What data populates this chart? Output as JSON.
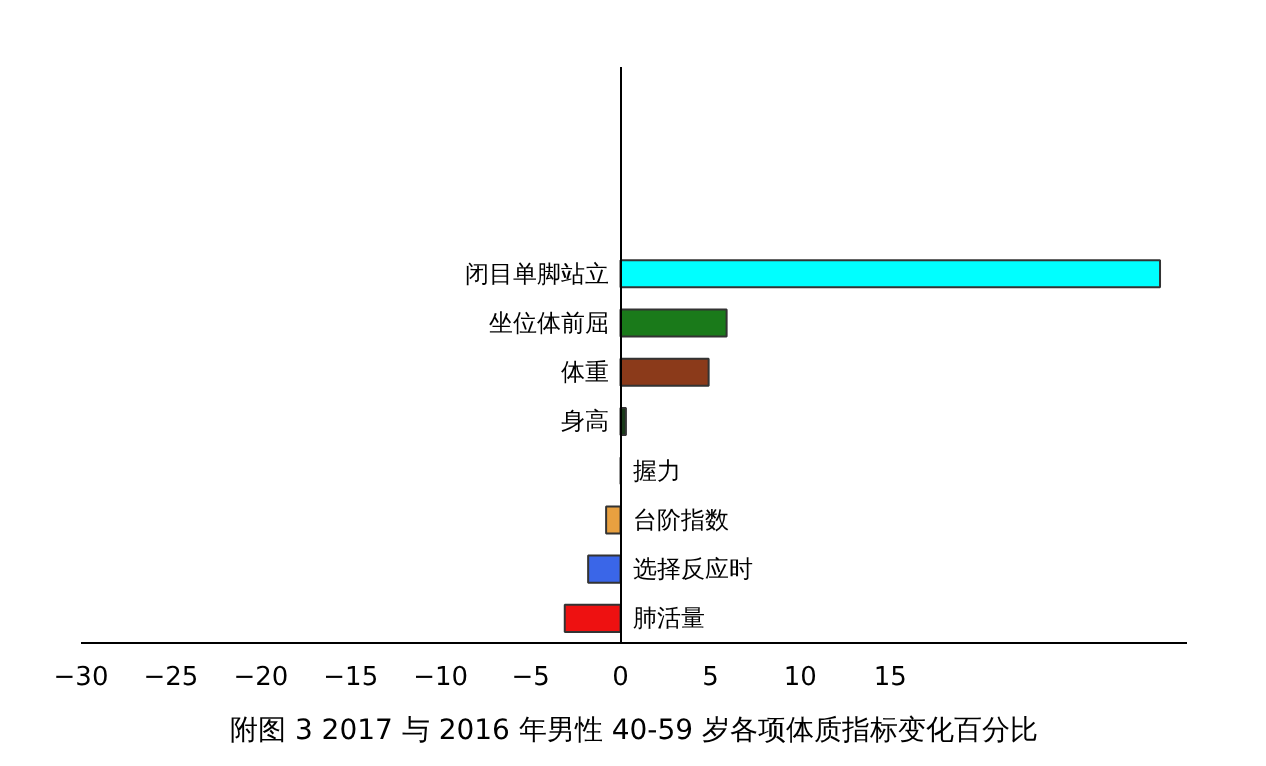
{
  "chart_data": {
    "type": "bar",
    "orientation": "horizontal",
    "title": "附图 3 2017 与 2016 年男性 40-59 岁各项体质指标变化百分比",
    "categories": [
      "闭目单脚站立",
      "坐位体前屈",
      "体重",
      "身高",
      "握力",
      "台阶指数",
      "选择反应时",
      "肺活量"
    ],
    "values": [
      30.0,
      5.9,
      4.9,
      0.3,
      0,
      -0.8,
      -1.8,
      -3.1
    ],
    "colors": [
      "#00ffff",
      "#1a7a1a",
      "#8b3a1a",
      "#1a3a1a",
      "#333333",
      "#e8a040",
      "#3a66e8",
      "#ee1111"
    ],
    "xlim": [
      -30,
      31.5
    ],
    "xticks": [
      -30,
      -25,
      -20,
      -15,
      -10,
      -5,
      0,
      5,
      10,
      15
    ],
    "grid": false
  }
}
